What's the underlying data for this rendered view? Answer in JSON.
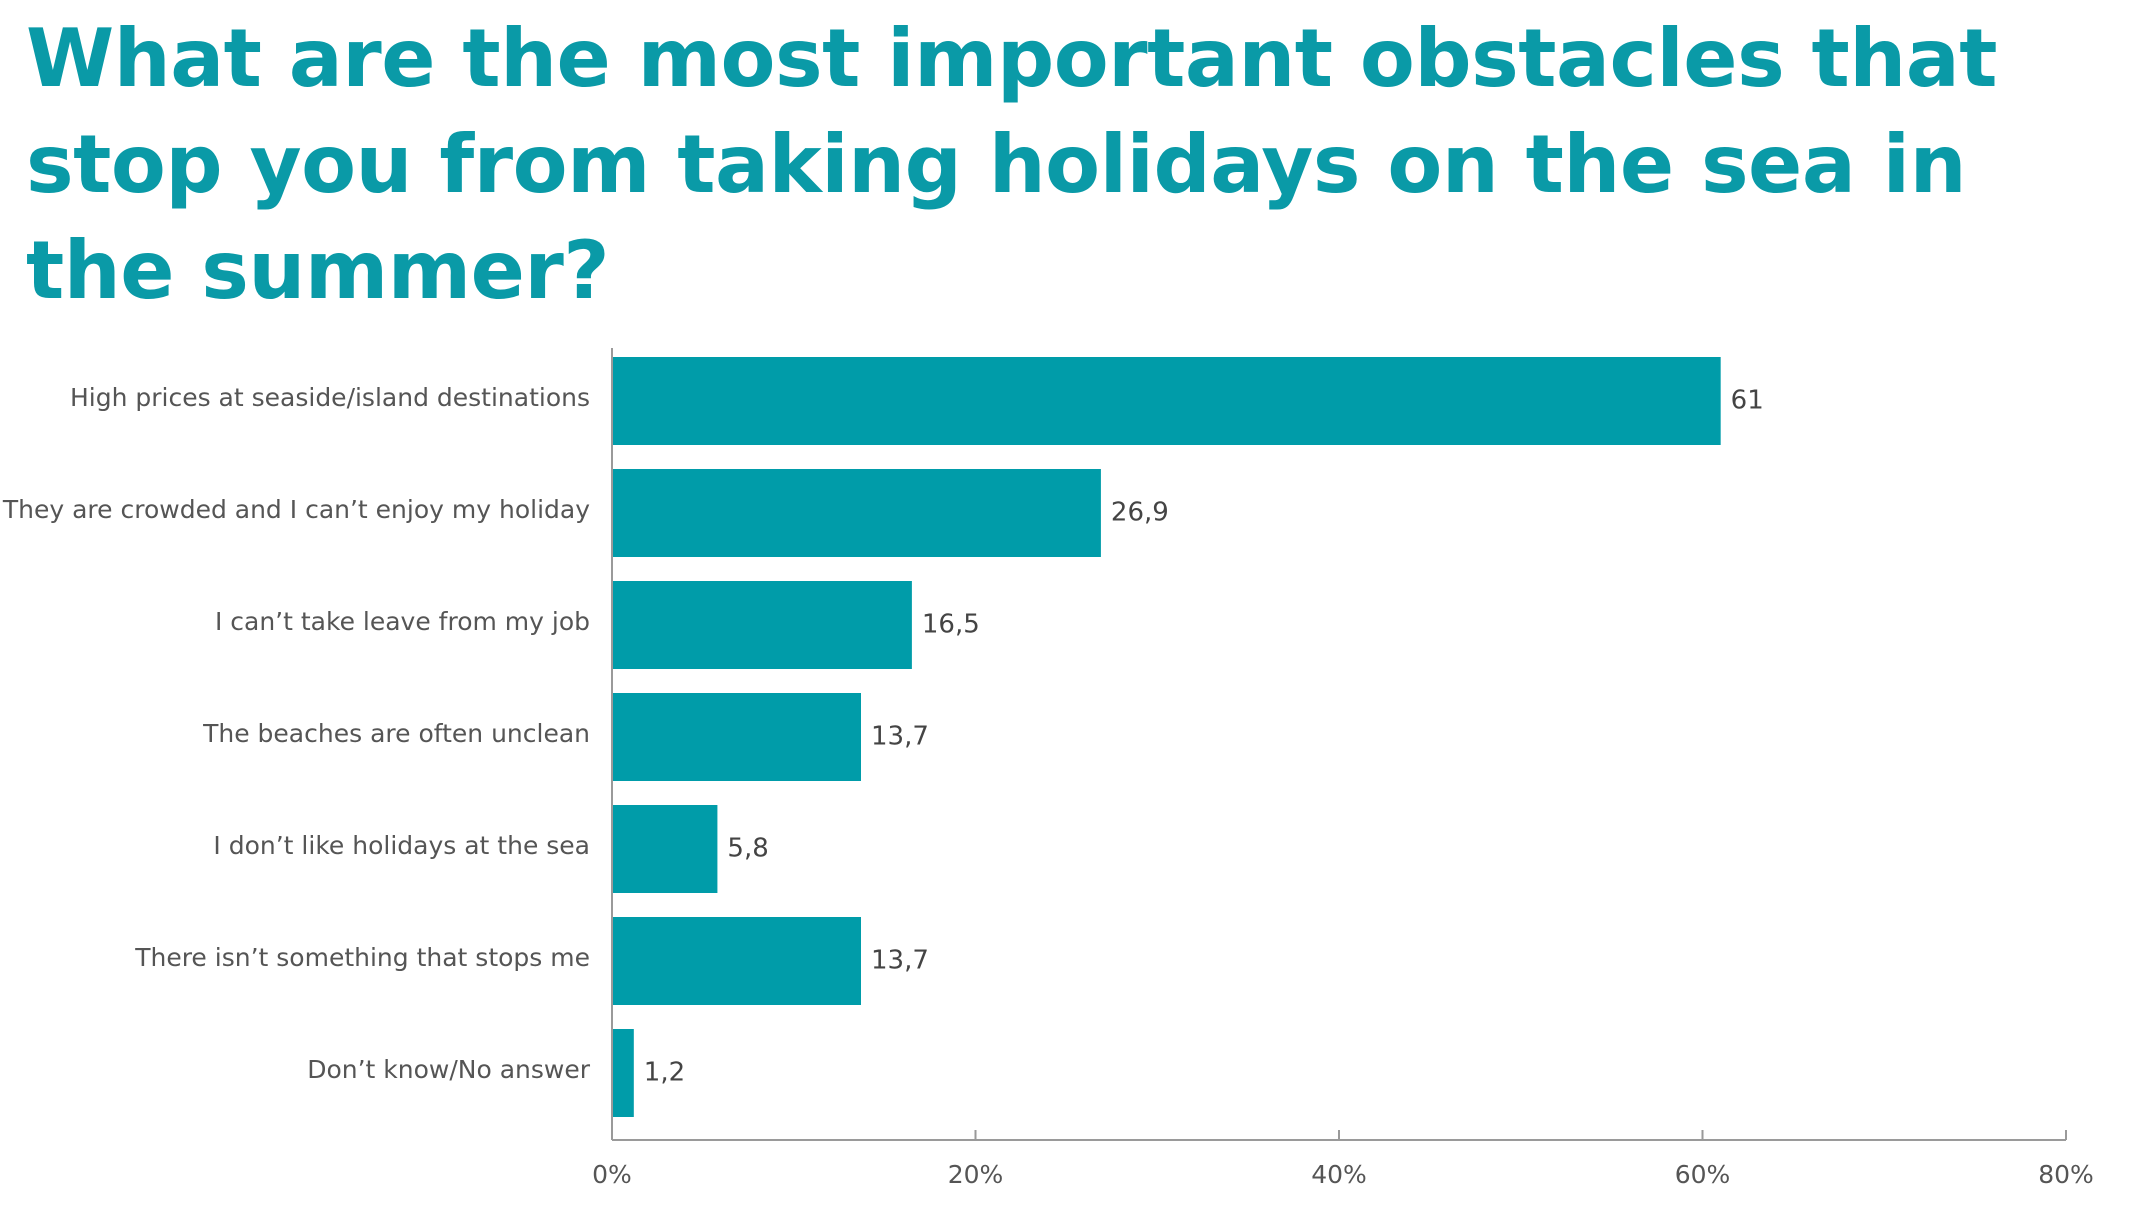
{
  "chart_data": {
    "type": "bar",
    "orientation": "horizontal",
    "title": "What are the most important obstacles that stop you from taking holidays on the sea in the summer?",
    "categories": [
      "High prices at seaside/island destinations",
      "They are crowded and I can’t enjoy my holiday",
      "I can’t take leave from my job",
      "The beaches are often unclean",
      "I don’t like holidays at the sea",
      "There isn’t something that stops me",
      "Don’t know/No answer"
    ],
    "values": [
      61,
      26.9,
      16.5,
      13.7,
      5.8,
      13.7,
      1.2
    ],
    "value_labels": [
      "61",
      "26,9",
      "16,5",
      "13,7",
      "5,8",
      "13,7",
      "1,2"
    ],
    "xlim": [
      0,
      80
    ],
    "xticks": [
      0,
      20,
      40,
      60,
      80
    ],
    "xtick_labels": [
      "0%",
      "20%",
      "40%",
      "60%",
      "80%"
    ],
    "xlabel": "",
    "ylabel": "",
    "grid": false,
    "legend": "none",
    "colors": {
      "bar": "#009ca9",
      "title": "#0a9aa7",
      "axis": "#9a9a9a",
      "label": "#555555",
      "value": "#444444"
    }
  }
}
